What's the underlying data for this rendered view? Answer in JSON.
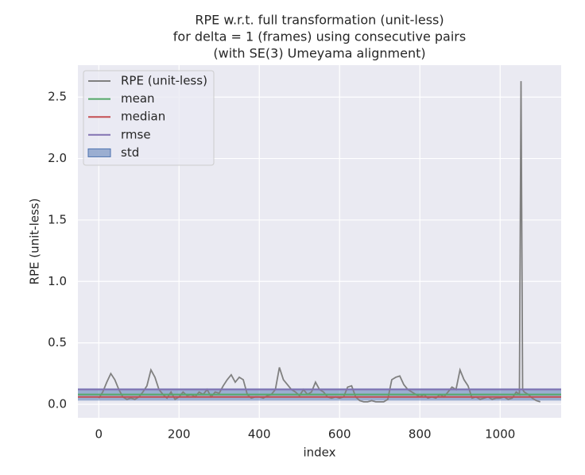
{
  "chart_data": {
    "type": "line",
    "title": [
      "RPE w.r.t. full transformation (unit-less)",
      "for delta = 1 (frames) using consecutive pairs",
      "(with SE(3) Umeyama alignment)"
    ],
    "x_label": "index",
    "y_label": "RPE (unit-less)",
    "xlim": [
      -52,
      1152
    ],
    "ylim": [
      -0.11,
      2.76
    ],
    "xticks": [
      0,
      200,
      400,
      600,
      800,
      1000
    ],
    "yticks": [
      {
        "value": 0,
        "label": "0.0"
      },
      {
        "value": 0.5,
        "label": "0.5"
      },
      {
        "value": 1,
        "label": "1.0"
      },
      {
        "value": 1.5,
        "label": "1.5"
      },
      {
        "value": 2,
        "label": "2.0"
      },
      {
        "value": 2.5,
        "label": "2.5"
      }
    ],
    "grid": true,
    "legend": "upper left",
    "x": [
      0,
      10,
      20,
      30,
      40,
      50,
      60,
      70,
      80,
      90,
      100,
      110,
      120,
      130,
      140,
      150,
      160,
      170,
      180,
      190,
      200,
      210,
      220,
      230,
      240,
      250,
      260,
      270,
      280,
      290,
      300,
      310,
      320,
      330,
      340,
      350,
      360,
      370,
      380,
      390,
      400,
      410,
      420,
      430,
      440,
      450,
      460,
      470,
      480,
      490,
      500,
      510,
      520,
      530,
      540,
      550,
      560,
      570,
      580,
      590,
      600,
      610,
      620,
      630,
      640,
      650,
      660,
      670,
      680,
      690,
      700,
      710,
      720,
      730,
      740,
      750,
      760,
      770,
      780,
      790,
      800,
      810,
      820,
      830,
      840,
      850,
      860,
      870,
      880,
      890,
      900,
      910,
      920,
      930,
      940,
      950,
      960,
      970,
      980,
      990,
      1000,
      1010,
      1020,
      1030,
      1040,
      1048,
      1052,
      1056,
      1060,
      1070,
      1080,
      1090,
      1100
    ],
    "series": [
      {
        "name": "RPE (unit-less)",
        "color": "#808080",
        "values": [
          0.05,
          0.1,
          0.18,
          0.25,
          0.2,
          0.12,
          0.06,
          0.04,
          0.05,
          0.04,
          0.06,
          0.1,
          0.15,
          0.28,
          0.22,
          0.12,
          0.08,
          0.05,
          0.1,
          0.04,
          0.06,
          0.1,
          0.07,
          0.08,
          0.06,
          0.1,
          0.08,
          0.12,
          0.06,
          0.1,
          0.09,
          0.15,
          0.2,
          0.24,
          0.18,
          0.22,
          0.2,
          0.08,
          0.05,
          0.06,
          0.06,
          0.05,
          0.07,
          0.08,
          0.12,
          0.3,
          0.2,
          0.16,
          0.12,
          0.1,
          0.07,
          0.12,
          0.08,
          0.1,
          0.18,
          0.12,
          0.1,
          0.06,
          0.05,
          0.06,
          0.05,
          0.06,
          0.14,
          0.15,
          0.06,
          0.03,
          0.02,
          0.02,
          0.03,
          0.02,
          0.02,
          0.02,
          0.04,
          0.2,
          0.22,
          0.23,
          0.16,
          0.12,
          0.1,
          0.08,
          0.06,
          0.08,
          0.05,
          0.06,
          0.05,
          0.08,
          0.06,
          0.1,
          0.14,
          0.12,
          0.28,
          0.2,
          0.15,
          0.05,
          0.06,
          0.04,
          0.05,
          0.06,
          0.04,
          0.05,
          0.05,
          0.06,
          0.04,
          0.05,
          0.1,
          0.08,
          2.63,
          0.12,
          0.1,
          0.08,
          0.05,
          0.03,
          0.02
        ]
      }
    ],
    "stats": [
      {
        "name": "mean",
        "color": "#55a868",
        "value": 0.08
      },
      {
        "name": "median",
        "color": "#c44e52",
        "value": 0.06
      },
      {
        "name": "rmse",
        "color": "#8172b2",
        "value": 0.12
      }
    ],
    "std": {
      "name": "std",
      "color": "#4c72b0",
      "value": 0.05
    }
  }
}
